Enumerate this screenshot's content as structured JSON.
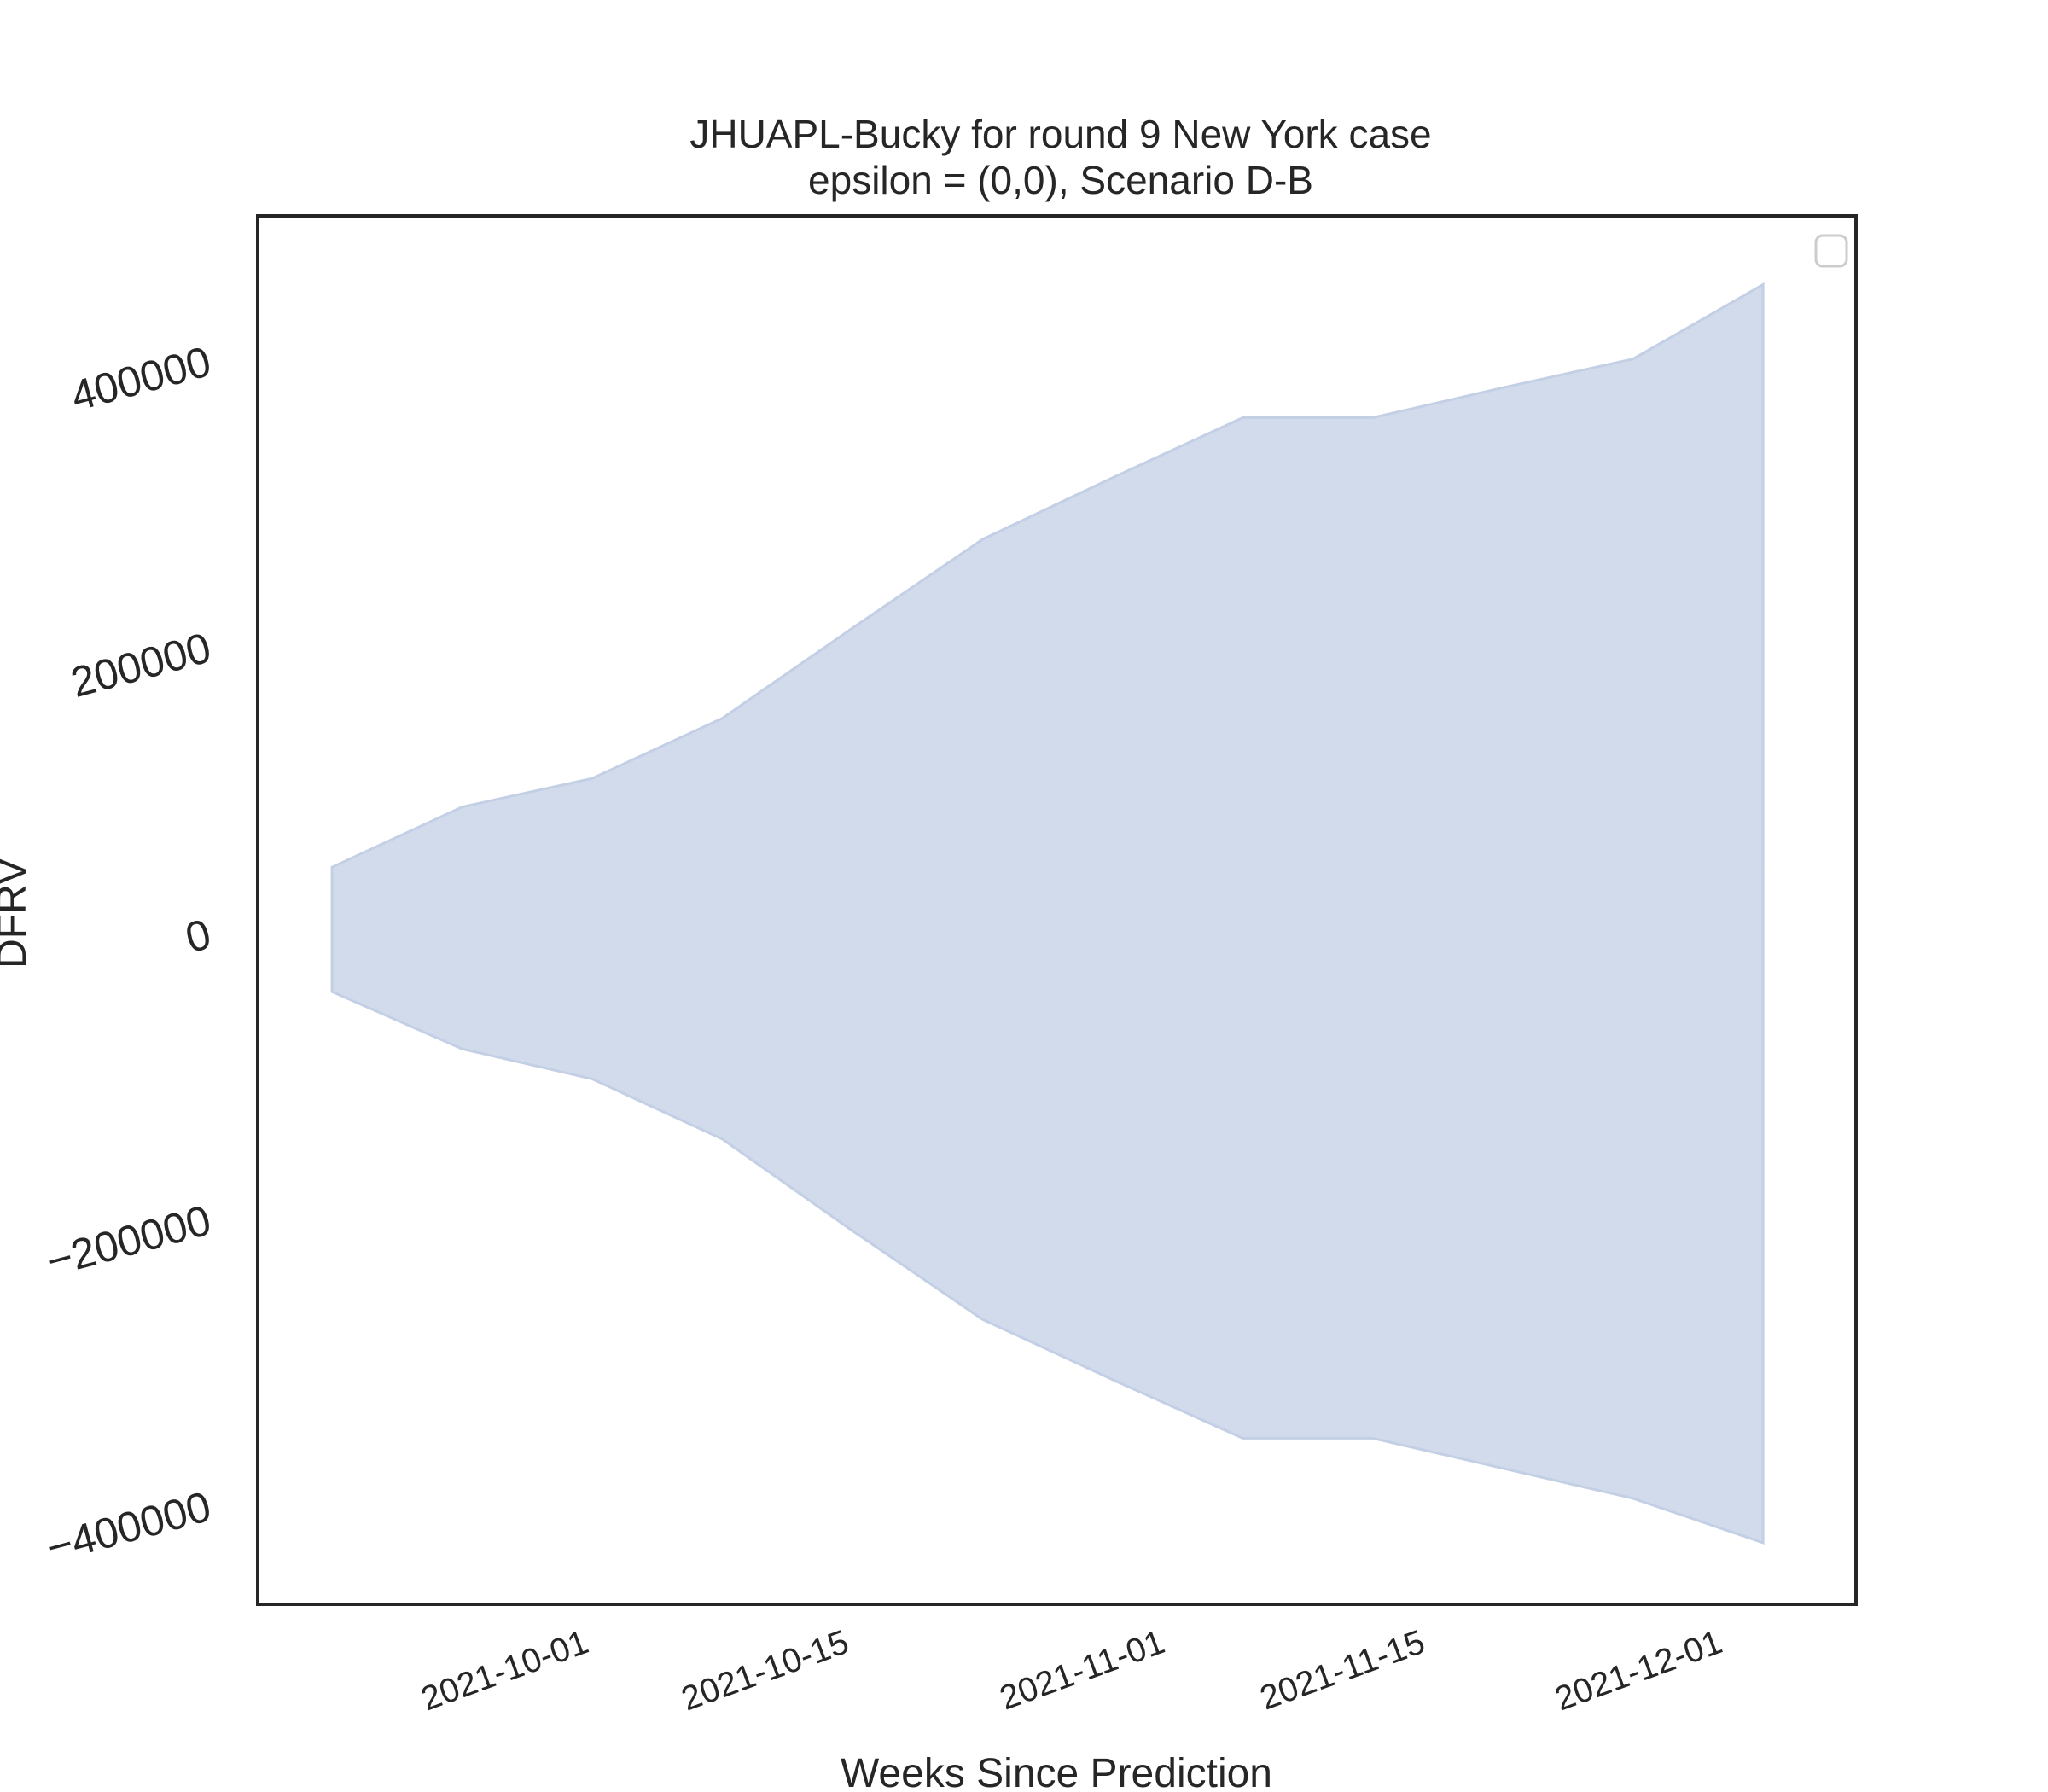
{
  "chart_data": {
    "type": "area",
    "title": "JHUAPL-Bucky for round 9 New York case",
    "subtitle": "epsilon = (0,0), Scenario D-B",
    "xlabel": "Weeks Since Prediction",
    "ylabel": "DFRV",
    "x": [
      "2021-09-18",
      "2021-09-25",
      "2021-10-02",
      "2021-10-09",
      "2021-10-16",
      "2021-10-23",
      "2021-10-30",
      "2021-11-06",
      "2021-11-13",
      "2021-11-20",
      "2021-11-27",
      "2021-12-04"
    ],
    "series": [
      {
        "upper": [
          45000,
          87000,
          107000,
          149000,
          212000,
          274000,
          317000,
          359000,
          359000,
          380000,
          400000,
          452000
        ],
        "lower": [
          -42000,
          -82000,
          -103000,
          -145000,
          -209000,
          -271000,
          -313000,
          -354000,
          -354000,
          -375000,
          -396000,
          -427000
        ],
        "color": "#c3cfe5"
      }
    ],
    "x_ticks": [
      "2021-10-01",
      "2021-10-15",
      "2021-11-01",
      "2021-11-15",
      "2021-12-01"
    ],
    "y_ticks": [
      -400000,
      -200000,
      0,
      200000,
      400000
    ],
    "y_tick_labels": [
      "−400000",
      "−200000",
      "0",
      "200000",
      "400000"
    ],
    "xlim": [
      "2021-09-14",
      "2021-12-09"
    ],
    "ylim": [
      -470000,
      500000
    ],
    "grid": false,
    "legend": "top-right",
    "legend_entries": []
  }
}
